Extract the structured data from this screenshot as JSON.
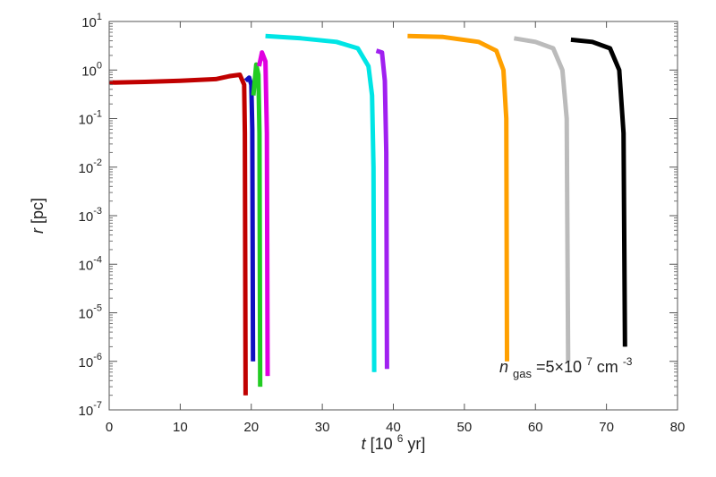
{
  "chart_data": {
    "type": "line",
    "title": "",
    "xlabel": {
      "var": "t",
      "text": "[10",
      "sup": "6",
      "tail": " yr]"
    },
    "ylabel": {
      "var": "r",
      "text": " [pc]"
    },
    "xlim": [
      0,
      80
    ],
    "ylim": [
      1e-07,
      10
    ],
    "yscale": "log",
    "grid": false,
    "x_ticks": [
      "0",
      "10",
      "20",
      "30",
      "40",
      "50",
      "60",
      "70",
      "80"
    ],
    "y_ticks": [
      {
        "base": "10",
        "exp": "1",
        "value": 10
      },
      {
        "base": "10",
        "exp": "0",
        "value": 1
      },
      {
        "base": "10",
        "exp": "-1",
        "value": 0.1
      },
      {
        "base": "10",
        "exp": "-2",
        "value": 0.01
      },
      {
        "base": "10",
        "exp": "-3",
        "value": 0.001
      },
      {
        "base": "10",
        "exp": "-4",
        "value": 0.0001
      },
      {
        "base": "10",
        "exp": "-5",
        "value": 1e-05
      },
      {
        "base": "10",
        "exp": "-6",
        "value": 1e-06
      },
      {
        "base": "10",
        "exp": "-7",
        "value": 1e-07
      }
    ],
    "annotation": {
      "var": "n",
      "sub": "gas",
      "eq": "=5×10",
      "sup1": "7",
      "unit": " cm",
      "sup2": "-3"
    },
    "series": [
      {
        "color": "#c00000",
        "points": [
          [
            0,
            0.55
          ],
          [
            5,
            0.57
          ],
          [
            10,
            0.6
          ],
          [
            15,
            0.65
          ],
          [
            17,
            0.75
          ],
          [
            18.4,
            0.8
          ],
          [
            19,
            0.5
          ],
          [
            19.1,
            0.05
          ],
          [
            19.2,
            2e-07
          ]
        ]
      },
      {
        "color": "#1010c0",
        "points": [
          [
            19.2,
            0.6
          ],
          [
            19.7,
            0.7
          ],
          [
            20,
            0.5
          ],
          [
            20.15,
            0.06
          ],
          [
            20.25,
            1e-06
          ]
        ]
      },
      {
        "color": "#22cc22",
        "points": [
          [
            20.3,
            0.3
          ],
          [
            20.7,
            1.3
          ],
          [
            21.0,
            0.8
          ],
          [
            21.15,
            0.05
          ],
          [
            21.25,
            3e-07
          ]
        ]
      },
      {
        "color": "#e000e0",
        "points": [
          [
            21.1,
            1.2
          ],
          [
            21.5,
            2.3
          ],
          [
            22.0,
            1.5
          ],
          [
            22.2,
            0.05
          ],
          [
            22.3,
            5e-07
          ]
        ]
      },
      {
        "color": "#00e5e5",
        "points": [
          [
            22,
            5
          ],
          [
            27,
            4.5
          ],
          [
            32,
            3.8
          ],
          [
            35,
            2.8
          ],
          [
            36.5,
            1.2
          ],
          [
            37,
            0.3
          ],
          [
            37.2,
            0.01
          ],
          [
            37.3,
            6e-07
          ]
        ]
      },
      {
        "color": "#a020f0",
        "points": [
          [
            37.6,
            2.5
          ],
          [
            38.4,
            2.3
          ],
          [
            38.8,
            0.6
          ],
          [
            39.0,
            0.02
          ],
          [
            39.1,
            7e-07
          ]
        ]
      },
      {
        "color": "#ffa000",
        "points": [
          [
            42,
            5
          ],
          [
            47,
            4.8
          ],
          [
            52,
            3.8
          ],
          [
            54.5,
            2.5
          ],
          [
            55.5,
            1.0
          ],
          [
            55.9,
            0.1
          ],
          [
            56.0,
            1e-06
          ]
        ]
      },
      {
        "color": "#bbbbbb",
        "points": [
          [
            57,
            4.5
          ],
          [
            60,
            3.8
          ],
          [
            62.5,
            2.8
          ],
          [
            63.8,
            1.0
          ],
          [
            64.4,
            0.1
          ],
          [
            64.6,
            1e-06
          ]
        ]
      },
      {
        "color": "#000000",
        "points": [
          [
            65,
            4.2
          ],
          [
            68,
            3.8
          ],
          [
            70.5,
            2.8
          ],
          [
            71.8,
            1.0
          ],
          [
            72.4,
            0.05
          ],
          [
            72.6,
            2e-06
          ]
        ]
      }
    ]
  }
}
